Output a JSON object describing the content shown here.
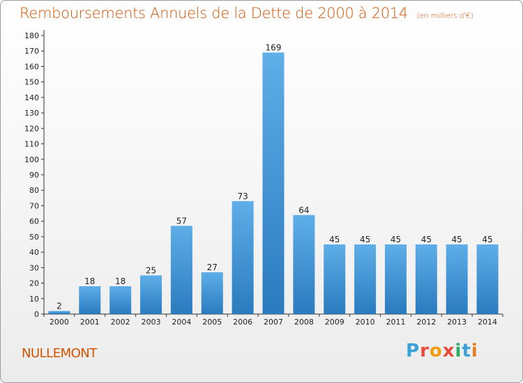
{
  "header": {
    "title": "Remboursements Annuels de la Dette de 2000 à 2014",
    "unit": "(en milliers d'€)"
  },
  "footer": {
    "commune": "NULLEMONT",
    "brand": "Proxiti"
  },
  "colors": {
    "title": "#d35400",
    "bar_top": "#5eaee8",
    "bar_bottom": "#2a7bbf",
    "brand_letters": [
      "#3aa0d8",
      "#e74c3c",
      "#f39c12",
      "#e74c3c",
      "#27ae60",
      "#3aa0d8",
      "#e67e22"
    ]
  },
  "chart_data": {
    "type": "bar",
    "title": "Remboursements Annuels de la Dette de 2000 à 2014",
    "ylabel": "",
    "xlabel": "",
    "categories": [
      "2000",
      "2001",
      "2002",
      "2003",
      "2004",
      "2005",
      "2006",
      "2007",
      "2008",
      "2009",
      "2010",
      "2011",
      "2012",
      "2013",
      "2014"
    ],
    "values": [
      2,
      18,
      18,
      25,
      57,
      27,
      73,
      169,
      64,
      45,
      45,
      45,
      45,
      45,
      45
    ],
    "ylim": [
      0,
      180
    ],
    "yticks": [
      0,
      10,
      20,
      30,
      40,
      50,
      60,
      70,
      80,
      90,
      100,
      110,
      120,
      130,
      140,
      150,
      160,
      170,
      180
    ],
    "grid": false,
    "legend": "none"
  }
}
